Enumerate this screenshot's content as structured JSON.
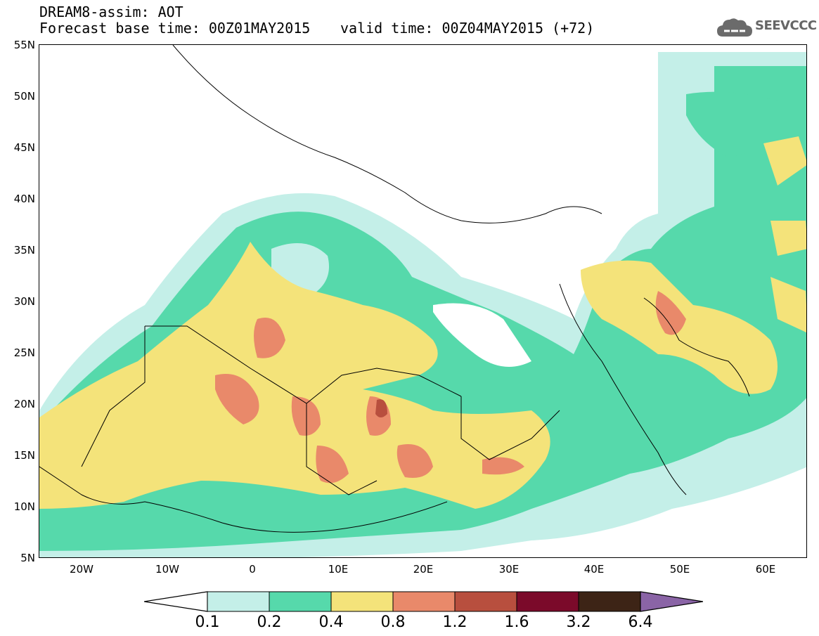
{
  "header": {
    "title": "DREAM8-assim: AOT",
    "base_time": "Forecast base time: 00Z01MAY2015",
    "valid_time": "valid time: 00Z04MAY2015 (+72)"
  },
  "brand": {
    "name": "SEEVCCC",
    "icon": "cloud-logo-icon",
    "color": "#6b6b6b"
  },
  "axes": {
    "lat_labels": [
      "55N",
      "50N",
      "45N",
      "40N",
      "35N",
      "30N",
      "25N",
      "20N",
      "15N",
      "10N",
      "5N"
    ],
    "lon_labels": [
      "20W",
      "10W",
      "0",
      "10E",
      "20E",
      "30E",
      "40E",
      "50E",
      "60E"
    ],
    "lat_range": [
      5,
      55
    ],
    "lon_range": [
      -25,
      65
    ]
  },
  "colorbar": {
    "labels": [
      "0.1",
      "0.2",
      "0.4",
      "0.8",
      "1.2",
      "1.6",
      "3.2",
      "6.4"
    ],
    "colors": [
      "#ffffff",
      "#c4efe8",
      "#56d9ab",
      "#f4e37a",
      "#e9896a",
      "#b84f3e",
      "#7b0a2a",
      "#3d2416",
      "#8a64a6"
    ]
  }
}
